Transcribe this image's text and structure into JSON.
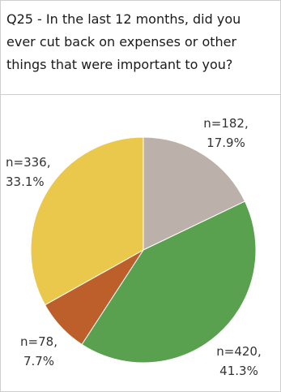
{
  "chart_data": {
    "type": "pie",
    "title": "Q25 - In the last 12 months, did you ever cut back on expenses or other things that were important to you?",
    "slices": [
      {
        "n_label": "n=182,",
        "pct_label": "17.9%",
        "value": 17.9,
        "color": "#bcb0aa"
      },
      {
        "n_label": "n=420,",
        "pct_label": "41.3%",
        "value": 41.3,
        "color": "#5aa14f"
      },
      {
        "n_label": "n=78,",
        "pct_label": "7.7%",
        "value": 7.7,
        "color": "#bd5f2b"
      },
      {
        "n_label": "n=336,",
        "pct_label": "33.1%",
        "value": 33.1,
        "color": "#eac84b"
      }
    ]
  }
}
